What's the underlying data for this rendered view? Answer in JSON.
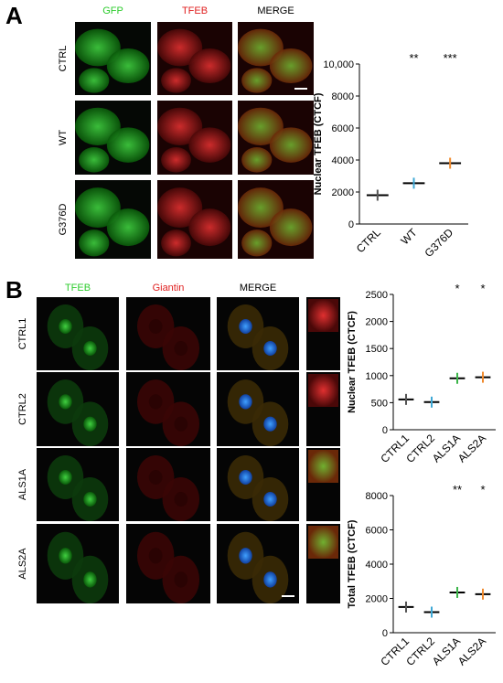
{
  "figure": {
    "panel_a": {
      "label": "A",
      "columns": [
        "GFP",
        "TFEB",
        "MERGE"
      ],
      "rows": [
        "CTRL",
        "WT",
        "G376D"
      ]
    },
    "panel_b": {
      "label": "B",
      "columns": [
        "TFEB",
        "Giantin",
        "MERGE"
      ],
      "rows": [
        "CTRL1",
        "CTRL2",
        "ALS1A",
        "ALS2A"
      ]
    }
  },
  "chart_data": [
    {
      "type": "strip",
      "y_label": "Nuclear TFEB (CTCF)",
      "categories": [
        "CTRL",
        "WT",
        "G376D"
      ],
      "values": [
        1800,
        2550,
        3800
      ],
      "colors": [
        "#555555",
        "#3fa9d6",
        "#f08a2e"
      ],
      "annotations": [
        null,
        "**",
        "***"
      ],
      "ylim": [
        0,
        10000
      ],
      "yticks": [
        0,
        2000,
        4000,
        6000,
        8000,
        {
          "value": 10000,
          "label": "10,000"
        }
      ]
    },
    {
      "type": "strip",
      "y_label": "Nuclear TFEB (CTCF)",
      "categories": [
        "CTRL1",
        "CTRL2",
        "ALS1A",
        "ALS2A"
      ],
      "values": [
        560,
        510,
        950,
        970
      ],
      "colors": [
        "#555555",
        "#3fa9d6",
        "#3cb54a",
        "#f08a2e"
      ],
      "annotations": [
        null,
        null,
        "*",
        "*"
      ],
      "ylim": [
        0,
        2500
      ],
      "yticks": [
        0,
        500,
        1000,
        1500,
        2000,
        2500
      ]
    },
    {
      "type": "strip",
      "y_label": "Total TFEB (CTCF)",
      "categories": [
        "CTRL1",
        "CTRL2",
        "ALS1A",
        "ALS2A"
      ],
      "values": [
        1500,
        1200,
        2350,
        2250
      ],
      "colors": [
        "#555555",
        "#3fa9d6",
        "#3cb54a",
        "#f08a2e"
      ],
      "annotations": [
        null,
        null,
        "**",
        "*"
      ],
      "ylim": [
        0,
        8000
      ],
      "yticks": [
        0,
        2000,
        4000,
        6000,
        8000
      ]
    }
  ]
}
